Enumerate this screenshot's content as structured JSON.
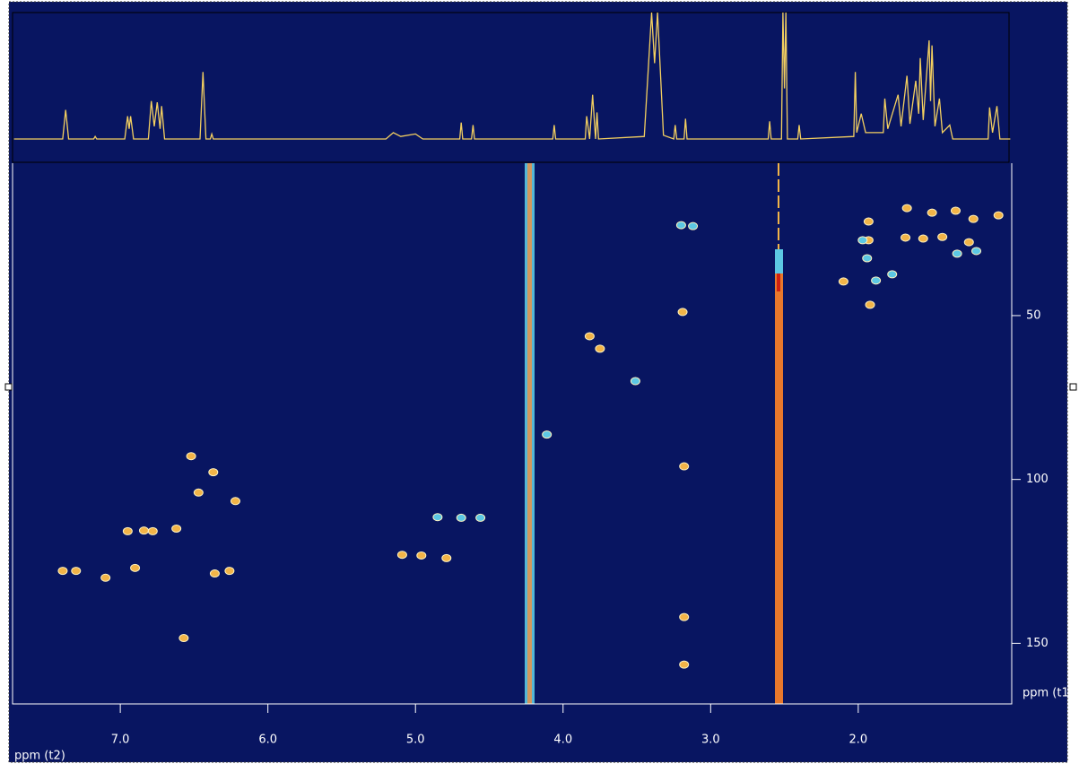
{
  "chart_data": [
    {
      "type": "scatter",
      "xlabel": "ppm (t2)",
      "ylabel": "ppm (t1",
      "xlim": [
        7.73,
        0.96
      ],
      "ylim": [
        3.5,
        168.5
      ],
      "xticks": [
        {
          "value": 7,
          "label": "7.0"
        },
        {
          "value": 6,
          "label": "6.0"
        },
        {
          "value": 5,
          "label": "5.0"
        },
        {
          "value": 4,
          "label": "4.0"
        },
        {
          "value": 3,
          "label": "3.0"
        },
        {
          "value": 2,
          "label": "2.0"
        }
      ],
      "yticks": [
        50,
        100,
        150
      ],
      "series": [
        {
          "color": "#f2b448",
          "x": [
            7.39,
            7.3,
            7.1,
            6.95,
            6.84,
            6.78,
            6.62,
            6.9,
            6.52,
            6.47,
            6.37,
            6.22,
            6.36,
            6.26,
            6.57,
            5.09,
            4.96,
            4.79,
            3.82,
            3.75,
            3.19,
            3.18,
            3.18,
            3.18,
            1.93,
            1.93,
            1.92,
            2.1,
            1.67,
            1.5,
            1.34,
            1.22,
            1.05,
            1.68,
            1.56,
            1.43,
            1.25
          ],
          "values": [
            127.9,
            127.9,
            130,
            115.8,
            115.6,
            115.8,
            115,
            127,
            92.9,
            104,
            97.8,
            106.6,
            128.7,
            127.9,
            148.4,
            123,
            123.2,
            124,
            56.3,
            60.1,
            48.9,
            96,
            142,
            156.5,
            21.3,
            27,
            46.7,
            39.6,
            17.2,
            18.6,
            18,
            20.5,
            19.4,
            26.2,
            26.5,
            26,
            27.6
          ]
        },
        {
          "color": "#5cc8e4",
          "x": [
            4.85,
            4.69,
            4.56,
            3.51,
            3.2,
            3.12,
            1.97,
            1.94,
            1.88,
            1.77,
            1.33,
            1.2,
            4.11
          ],
          "values": [
            111.5,
            111.7,
            111.7,
            70,
            22.4,
            22.7,
            27,
            32.5,
            39.3,
            37.4,
            31.1,
            30.3,
            86.3
          ]
        }
      ]
    },
    {
      "type": "line",
      "color": "#f4d060",
      "xlim": [
        7.73,
        0.96
      ],
      "x": [
        7.72,
        7.39,
        7.37,
        7.35,
        7.18,
        7.17,
        7.16,
        6.97,
        6.95,
        6.94,
        6.93,
        6.91,
        6.81,
        6.79,
        6.77,
        6.75,
        6.73,
        6.72,
        6.7,
        6.46,
        6.44,
        6.42,
        6.39,
        6.38,
        6.37,
        5.2,
        5.15,
        5.1,
        5.0,
        4.95,
        4.7,
        4.69,
        4.68,
        4.62,
        4.61,
        4.6,
        4.07,
        4.06,
        4.05,
        3.85,
        3.84,
        3.82,
        3.8,
        3.78,
        3.77,
        3.76,
        3.45,
        3.4,
        3.38,
        3.36,
        3.32,
        3.25,
        3.24,
        3.23,
        3.18,
        3.17,
        3.16,
        2.61,
        2.6,
        2.59,
        2.52,
        2.51,
        2.5,
        2.49,
        2.48,
        2.41,
        2.4,
        2.39,
        2.03,
        2.02,
        2.01,
        1.98,
        1.95,
        1.83,
        1.82,
        1.8,
        1.73,
        1.71,
        1.67,
        1.65,
        1.61,
        1.59,
        1.58,
        1.56,
        1.52,
        1.51,
        1.5,
        1.48,
        1.45,
        1.43,
        1.38,
        1.36,
        1.12,
        1.11,
        1.09,
        1.06,
        1.04,
        0.97
      ],
      "values": [
        0,
        0,
        23,
        0,
        0,
        2,
        0,
        0,
        18,
        8,
        18,
        0,
        0,
        30,
        10,
        29,
        8,
        26,
        0,
        0,
        53,
        0,
        0,
        4,
        0,
        0,
        5,
        2,
        4,
        0,
        0,
        13,
        0,
        0,
        11,
        0,
        0,
        11,
        0,
        0,
        18,
        0,
        35,
        0,
        21,
        0,
        2,
        100,
        60,
        100,
        3,
        0,
        11,
        0,
        0,
        16,
        0,
        0,
        14,
        0,
        0,
        100,
        40,
        100,
        0,
        0,
        11,
        0,
        2,
        53,
        5,
        20,
        5,
        5,
        32,
        8,
        35,
        10,
        50,
        12,
        46,
        20,
        64,
        15,
        78,
        30,
        74,
        10,
        32,
        5,
        11,
        0,
        0,
        25,
        5,
        26,
        0,
        0
      ]
    }
  ]
}
